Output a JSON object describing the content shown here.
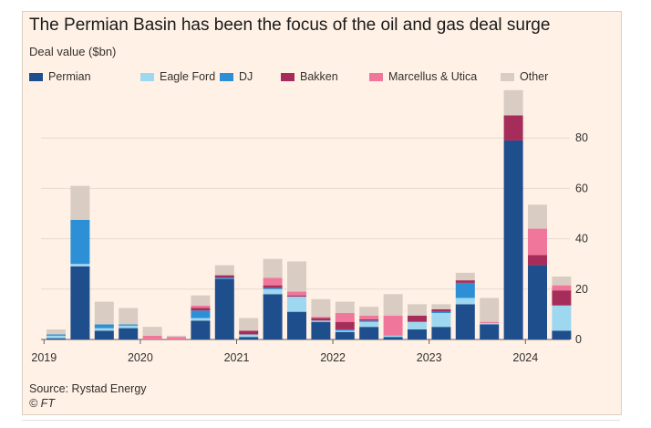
{
  "chart_data": {
    "type": "bar",
    "stacked": true,
    "title": "The Permian Basin has been the focus of the oil and gas deal surge",
    "ylabel": "Deal value ($bn)",
    "ylim": [
      0,
      100
    ],
    "yticks": [
      0,
      20,
      40,
      60,
      80
    ],
    "y_axis_side": "right",
    "grid": true,
    "legend_position": "top",
    "x_tick_labels": [
      "2019",
      "2020",
      "2021",
      "2022",
      "2023",
      "2024"
    ],
    "categories": [
      "2019 Q1",
      "2019 Q2",
      "2019 Q3",
      "2019 Q4",
      "2020 Q1",
      "2020 Q2",
      "2020 Q3",
      "2020 Q4",
      "2021 Q1",
      "2021 Q2",
      "2021 Q3",
      "2021 Q4",
      "2022 Q1",
      "2022 Q2",
      "2022 Q3",
      "2022 Q4",
      "2023 Q1",
      "2023 Q2",
      "2023 Q3",
      "2023 Q4",
      "2024 Q1",
      "2024 Q2"
    ],
    "series": [
      {
        "name": "Permian",
        "color": "#1f4e8c",
        "values": [
          0.5,
          29,
          3.5,
          4.5,
          0,
          0,
          7.5,
          24,
          1,
          18,
          11,
          7,
          3,
          5,
          1,
          4,
          5,
          14,
          6,
          79,
          29.5,
          3.5
        ]
      },
      {
        "name": "Eagle Ford",
        "color": "#9ed7f0",
        "values": [
          1,
          1,
          1,
          1,
          0,
          0,
          1,
          0,
          1,
          2,
          6,
          0.5,
          0.5,
          2,
          0.5,
          3,
          5.5,
          2.5,
          0.5,
          0,
          0,
          10
        ]
      },
      {
        "name": "DJ",
        "color": "#2d8fd5",
        "values": [
          0.5,
          17.5,
          1.5,
          0.5,
          0,
          0,
          3,
          0.5,
          0,
          0.5,
          0,
          0,
          0.5,
          0.5,
          0,
          0,
          0.5,
          6,
          0,
          0,
          0,
          0
        ]
      },
      {
        "name": "Bakken",
        "color": "#a62d5a",
        "values": [
          0,
          0,
          0,
          0,
          0,
          0,
          1,
          1,
          1.5,
          1,
          0.5,
          1,
          3,
          0.5,
          0,
          2.5,
          1,
          1,
          0,
          10,
          4,
          6
        ]
      },
      {
        "name": "Marcellus & Utica",
        "color": "#f0779b",
        "values": [
          0,
          0,
          0,
          0,
          1.5,
          1,
          1,
          0,
          0,
          3,
          1.5,
          0.5,
          3.5,
          1.5,
          8,
          0,
          0,
          0,
          0.5,
          0,
          10.5,
          2
        ]
      },
      {
        "name": "Other",
        "color": "#d9ccc2",
        "values": [
          2,
          13.5,
          9,
          6.5,
          3.5,
          0.5,
          4,
          4,
          5,
          7.5,
          12,
          7,
          4.5,
          3.5,
          8.5,
          4.5,
          2,
          3,
          9.5,
          10,
          9.5,
          3.5
        ]
      }
    ]
  },
  "source": "Source: Rystad Energy",
  "copyright": "© FT"
}
